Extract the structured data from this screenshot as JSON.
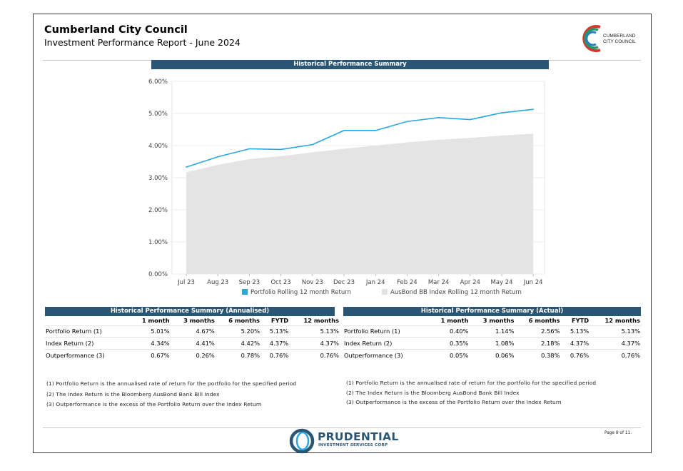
{
  "header": {
    "title": "Cumberland City Council",
    "subtitle": "Investment Performance Report - June 2024",
    "logo_text_line1": "CUMBERLAND",
    "logo_text_line2": "CITY COUNCIL"
  },
  "chart_banner": "Historical Performance Summary",
  "chart_data": {
    "type": "line",
    "title": "Historical Performance Summary",
    "categories": [
      "Jul 23",
      "Aug 23",
      "Sep 23",
      "Oct 23",
      "Nov 23",
      "Dec 23",
      "Jan 24",
      "Feb 24",
      "Mar 24",
      "Apr 24",
      "May 24",
      "Jun 24"
    ],
    "y_ticks": [
      "6.00%",
      "5.00%",
      "4.00%",
      "3.00%",
      "2.00%",
      "1.00%",
      "0.00%"
    ],
    "ylim": [
      0,
      6
    ],
    "series": [
      {
        "name": "Portfolio Rolling 12 month Return",
        "kind": "line",
        "color": "#29a8e0",
        "values": [
          3.33,
          3.65,
          3.9,
          3.88,
          4.03,
          4.47,
          4.47,
          4.75,
          4.87,
          4.81,
          5.02,
          5.13
        ]
      },
      {
        "name": "AusBond BB Index Rolling 12 month Return",
        "kind": "area",
        "color": "#e4e4e4",
        "values": [
          3.17,
          3.4,
          3.58,
          3.67,
          3.79,
          3.9,
          4.0,
          4.1,
          4.18,
          4.24,
          4.31,
          4.37
        ]
      }
    ],
    "legend": "bottom",
    "grid": true
  },
  "tables": [
    {
      "title": "Historical Performance Summary (Annualised)",
      "headers": [
        "",
        "1 month",
        "3 months",
        "6 months",
        "FYTD",
        "12 months"
      ],
      "rows": [
        {
          "label": "Portfolio Return (1)",
          "values": [
            "5.01%",
            "4.67%",
            "5.20%",
            "5.13%",
            "5.13%"
          ]
        },
        {
          "label": "Index Return (2)",
          "values": [
            "4.34%",
            "4.41%",
            "4.42%",
            "4.37%",
            "4.37%"
          ]
        },
        {
          "label": "Outperformance (3)",
          "values": [
            "0.67%",
            "0.26%",
            "0.78%",
            "0.76%",
            "0.76%"
          ]
        }
      ]
    },
    {
      "title": "Historical Performance Summary (Actual)",
      "headers": [
        "",
        "1 month",
        "3 months",
        "6 months",
        "FYTD",
        "12 months"
      ],
      "rows": [
        {
          "label": "Portfolio Return (1)",
          "values": [
            "0.40%",
            "1.14%",
            "2.56%",
            "5.13%",
            "5.13%"
          ]
        },
        {
          "label": "Index Return (2)",
          "values": [
            "0.35%",
            "1.08%",
            "2.18%",
            "4.37%",
            "4.37%"
          ]
        },
        {
          "label": "Outperformance (3)",
          "values": [
            "0.05%",
            "0.06%",
            "0.38%",
            "0.76%",
            "0.76%"
          ]
        }
      ]
    }
  ],
  "notes": [
    "(1) Portfolio Return is the annualised rate of return for the portfolio for the specified period",
    "(2) The Index Return is the Bloomberg AusBond Bank Bill Index",
    "(3) Outperformance is the excess of the Portfolio Return over the Index Return"
  ],
  "footer": {
    "brand": "PRUDENTIAL",
    "brand_sub": "INVESTMENT SERVICES CORP",
    "page": "Page 8 of 11."
  }
}
